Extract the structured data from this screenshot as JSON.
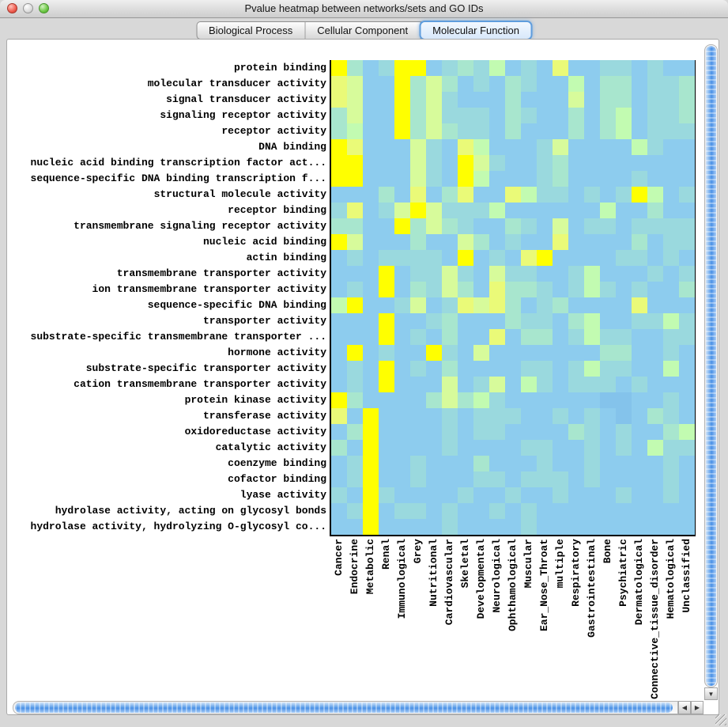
{
  "window": {
    "title": "Pvalue heatmap between networks/sets and GO IDs"
  },
  "tabs": [
    {
      "label": "Biological Process",
      "selected": false
    },
    {
      "label": "Cellular Component",
      "selected": false
    },
    {
      "label": "Molecular Function",
      "selected": true
    }
  ],
  "heatmap": {
    "row_labels": [
      "protein binding",
      "molecular transducer activity",
      "signal transducer activity",
      "signaling receptor activity",
      "receptor activity",
      "DNA binding",
      "nucleic acid binding transcription factor act...",
      "sequence-specific DNA binding transcription f...",
      "structural molecule activity",
      "receptor binding",
      "transmembrane signaling receptor activity",
      "nucleic acid binding",
      "actin binding",
      "transmembrane transporter activity",
      "ion transmembrane transporter activity",
      "sequence-specific DNA binding",
      "transporter activity",
      "substrate-specific transmembrane transporter ...",
      "hormone activity",
      "substrate-specific transporter activity",
      "cation transmembrane transporter activity",
      "protein kinase activity",
      "transferase activity",
      "oxidoreductase activity",
      "catalytic activity",
      "coenzyme binding",
      "cofactor binding",
      "lyase activity",
      "hydrolase activity, acting on glycosyl bonds",
      "hydrolase activity, hydrolyzing O-glycosyl co..."
    ],
    "column_labels": [
      "Cancer",
      "Endocrine",
      "Metabolic",
      "Renal",
      "Immunological",
      "Grey",
      "Nutritional",
      "Cardiovascular",
      "Skeletal",
      "Developmental",
      "Neurological",
      "Ophthamological",
      "Muscular",
      "Ear_Nose_Throat",
      "multiple",
      "Respiratory",
      "Gastrointestinal",
      "Bone",
      "Psychiatric",
      "Dermatological",
      "Connective_tissue_disorder",
      "Hematological",
      "Unclassified"
    ],
    "palette": {
      "Y": "#ffff00",
      "p": "#eafa78",
      "g": "#d7fb9b",
      "G": "#c2fbb1",
      "m": "#a8e6ce",
      "t": "#9ad9de",
      "b": "#8dccee",
      "d": "#84c3eb"
    },
    "grid": [
      "YmbtYYbtmtGbtbpbbttbtbb",
      "pgbbYmgmbtbmtbbGbmmbttm",
      "pgbbYmgtbbbmbbbgbmmbttm",
      "mgbbYmgtttbmtbbmbmGbttm",
      "mGbbYmgmttbmbbbmbmGbttt",
      "YpbbbgtbpGbbbtgbbbbGtbb",
      "YYbbbgtbYgtbbtmbbbbbbbb",
      "YYbbbgtbYGbbbtmbbbbtbbb",
      "bbbmbpbmpbbpGttbtbtYGbt",
      "tpbtgYgtttGbbbbbbGbbmbb",
      "mmbbYmgmtbbmtbgbttbtttt",
      "Ygbbbmbbgmbtbbpbbbbmbtt",
      "btbttttbYbtbpYbbbbttbtb",
      "bbbYbttgtbgttbbtGbbbtbt",
      "btbYbmtgmbpmmtbtGtbtbbm",
      "GYbbtgbtpgpmbtmbbbbpbbb",
      "bbbYbbtmbbbmttbmGbbttGt",
      "bbbYbtbmbbpbmmbtGttbbtt",
      "bYbtbbYtbgbbbbbbbmmbbtb",
      "btbYbtbmbbbbttbtGttbbGb",
      "btbYbbbgbtgbGtbtttbtbbb",
      "YmbbbbmgmGtbbbbbbddbbtb",
      "pbYbbbbtbtttbbtbtbdbmtb",
      "bmYbbbbtbttbbbbmtbtbbmG",
      "mbYbbbbtbbbbttbbtbtbGtt",
      "btYbbtbbbmbbbtbbtbbbbtb",
      "btYbbtbbbttbtttbtbbbbtb",
      "tbYtbbbbtbbtbbtbbbtbbtb",
      "btYbttbtbbtbtbbbbbbbbbb",
      "bbYbbbbtbbbbtbbbbbbbbbb"
    ]
  },
  "scrollbars": {
    "h_left_arrow": "◀",
    "h_right_arrow": "▶",
    "v_down_arrow": "▼"
  }
}
